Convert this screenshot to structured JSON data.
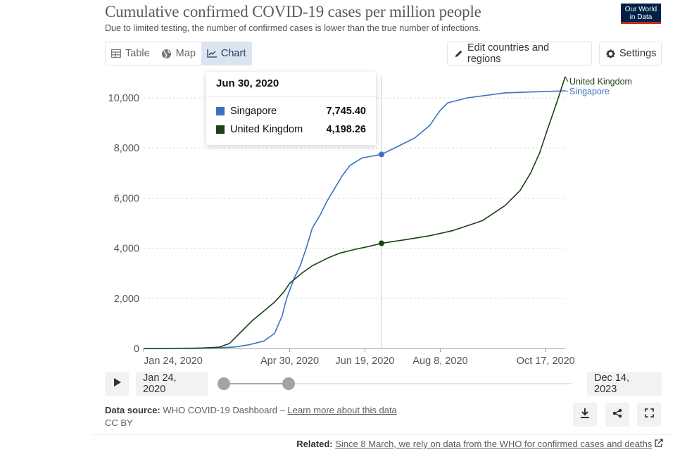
{
  "header": {
    "title": "Cumulative confirmed COVID-19 cases per million people",
    "subtitle": "Due to limited testing, the number of confirmed cases is lower than the true number of infections.",
    "logo_line1": "Our World",
    "logo_line2": "in Data"
  },
  "tabs": [
    {
      "label": "Table",
      "icon": "table-icon"
    },
    {
      "label": "Map",
      "icon": "globe-icon"
    },
    {
      "label": "Chart",
      "icon": "line-chart-icon",
      "active": true
    }
  ],
  "toolbar": {
    "edit_label": "Edit countries and regions",
    "settings_label": "Settings"
  },
  "tooltip": {
    "date": "Jun 30, 2020",
    "rows": [
      {
        "name": "Singapore",
        "value": "7,745.40",
        "color": "#3b72c0"
      },
      {
        "name": "United Kingdom",
        "value": "4,198.26",
        "color": "#1a4314"
      }
    ]
  },
  "timeline": {
    "start": "Jan 24, 2020",
    "end": "Dec 14, 2023"
  },
  "footer": {
    "source_label": "Data source:",
    "source_text": "WHO COVID-19 Dashboard –",
    "learn_more": "Learn more about this data",
    "license": "CC BY",
    "related_label": "Related:",
    "related_text": "Since 8 March, we rely on data from the WHO for confirmed cases and deaths"
  },
  "chart_data": {
    "type": "line",
    "title": "Cumulative confirmed COVID-19 cases per million people",
    "x_unit": "days since Jan 24, 2020",
    "x_domain": [
      0,
      280
    ],
    "ylim": [
      0,
      10000
    ],
    "yticks": [
      0,
      2000,
      4000,
      6000,
      8000,
      10000
    ],
    "ytick_labels": [
      "0",
      "2,000",
      "4,000",
      "6,000",
      "8,000",
      "10,000"
    ],
    "xticks": [
      {
        "day": 0,
        "label": "Jan 24, 2020"
      },
      {
        "day": 97,
        "label": "Apr 30, 2020"
      },
      {
        "day": 147,
        "label": "Jun 19, 2020"
      },
      {
        "day": 197,
        "label": "Aug 8, 2020"
      },
      {
        "day": 267,
        "label": "Oct 17, 2020"
      }
    ],
    "hover_day": 158,
    "series": [
      {
        "name": "Singapore",
        "color": "#3b72c0",
        "points": [
          [
            0,
            0
          ],
          [
            30,
            10
          ],
          [
            50,
            30
          ],
          [
            60,
            60
          ],
          [
            70,
            150
          ],
          [
            80,
            300
          ],
          [
            87,
            600
          ],
          [
            92,
            1300
          ],
          [
            95,
            2000
          ],
          [
            100,
            2800
          ],
          [
            104,
            3300
          ],
          [
            108,
            4000
          ],
          [
            112,
            4800
          ],
          [
            117,
            5300
          ],
          [
            122,
            5900
          ],
          [
            127,
            6400
          ],
          [
            132,
            6900
          ],
          [
            137,
            7300
          ],
          [
            145,
            7600
          ],
          [
            158,
            7745
          ],
          [
            165,
            7950
          ],
          [
            180,
            8400
          ],
          [
            190,
            8900
          ],
          [
            197,
            9500
          ],
          [
            202,
            9800
          ],
          [
            215,
            10000
          ],
          [
            240,
            10200
          ],
          [
            280,
            10280
          ]
        ]
      },
      {
        "name": "United Kingdom",
        "color": "#1a4314",
        "points": [
          [
            0,
            0
          ],
          [
            35,
            5
          ],
          [
            50,
            50
          ],
          [
            57,
            200
          ],
          [
            62,
            500
          ],
          [
            67,
            800
          ],
          [
            72,
            1100
          ],
          [
            80,
            1500
          ],
          [
            87,
            1850
          ],
          [
            93,
            2250
          ],
          [
            97,
            2600
          ],
          [
            105,
            3000
          ],
          [
            112,
            3300
          ],
          [
            122,
            3600
          ],
          [
            130,
            3800
          ],
          [
            140,
            3950
          ],
          [
            150,
            4080
          ],
          [
            158,
            4198
          ],
          [
            175,
            4350
          ],
          [
            190,
            4500
          ],
          [
            205,
            4700
          ],
          [
            215,
            4900
          ],
          [
            225,
            5100
          ],
          [
            235,
            5500
          ],
          [
            240,
            5700
          ],
          [
            250,
            6300
          ],
          [
            257,
            7000
          ],
          [
            263,
            7800
          ],
          [
            268,
            8700
          ],
          [
            272,
            9400
          ],
          [
            276,
            10100
          ],
          [
            280,
            10850
          ]
        ]
      }
    ]
  }
}
